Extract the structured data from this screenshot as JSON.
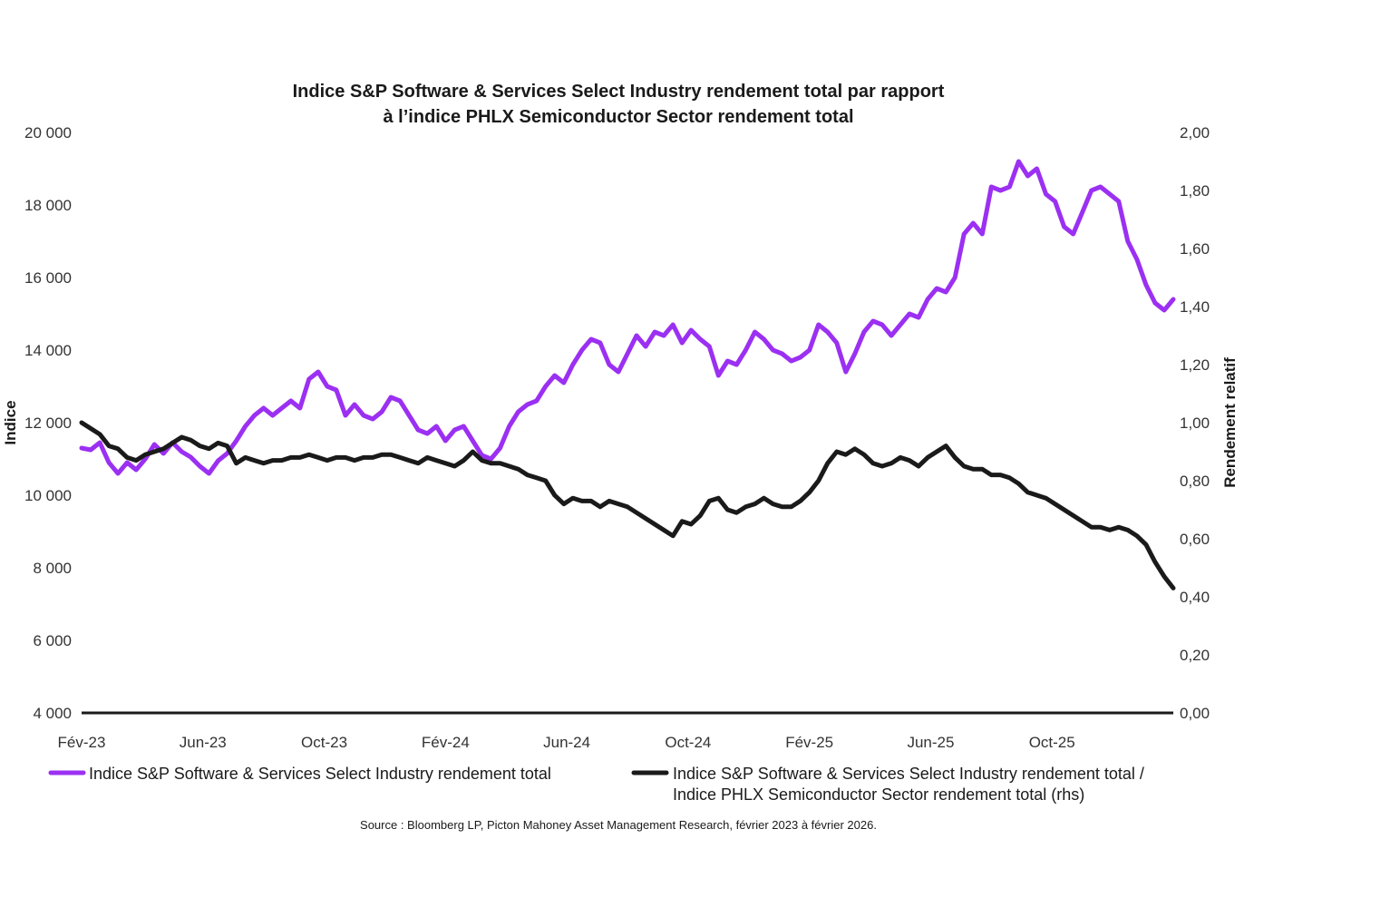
{
  "chart_data": {
    "type": "line",
    "title": [
      "Indice S&P Software & Services Select Industry rendement total par rapport",
      "à l’indice PHLX Semiconductor Sector rendement total"
    ],
    "ylabel_left": "Indice",
    "ylabel_right": "Rendement relatif",
    "ylim_left": [
      4000,
      20000
    ],
    "ylim_right": [
      0,
      2
    ],
    "yticks_left": [
      "4 000",
      "6 000",
      "8 000",
      "10 000",
      "12 000",
      "14 000",
      "16 000",
      "18 000",
      "20 000"
    ],
    "yticks_right": [
      "0,00",
      "0,20",
      "0,40",
      "0,60",
      "0,80",
      "1,00",
      "1,20",
      "1,40",
      "1,60",
      "1,80",
      "2,00"
    ],
    "x_categories": [
      "Fév-23",
      "Jun-23",
      "Oct-23",
      "Fév-24",
      "Jun-24",
      "Oct-24",
      "Fév-25",
      "Jun-25",
      "Oct-25"
    ],
    "x_range_months": [
      0,
      36
    ],
    "series": [
      {
        "name": "Indice S&P Software & Services Select Industry rendement total",
        "axis": "left",
        "color": "#9b30f2",
        "points": [
          [
            0,
            11300
          ],
          [
            0.3,
            11250
          ],
          [
            0.6,
            11450
          ],
          [
            0.9,
            10900
          ],
          [
            1.2,
            10600
          ],
          [
            1.5,
            10900
          ],
          [
            1.8,
            10700
          ],
          [
            2.1,
            11000
          ],
          [
            2.4,
            11400
          ],
          [
            2.7,
            11150
          ],
          [
            3.0,
            11450
          ],
          [
            3.3,
            11200
          ],
          [
            3.6,
            11050
          ],
          [
            3.9,
            10800
          ],
          [
            4.2,
            10600
          ],
          [
            4.5,
            10950
          ],
          [
            4.8,
            11150
          ],
          [
            5.1,
            11500
          ],
          [
            5.4,
            11900
          ],
          [
            5.7,
            12200
          ],
          [
            6.0,
            12400
          ],
          [
            6.3,
            12200
          ],
          [
            6.6,
            12400
          ],
          [
            6.9,
            12600
          ],
          [
            7.2,
            12400
          ],
          [
            7.5,
            13200
          ],
          [
            7.8,
            13400
          ],
          [
            8.1,
            13000
          ],
          [
            8.4,
            12900
          ],
          [
            8.7,
            12200
          ],
          [
            9.0,
            12500
          ],
          [
            9.3,
            12200
          ],
          [
            9.6,
            12100
          ],
          [
            9.9,
            12300
          ],
          [
            10.2,
            12700
          ],
          [
            10.5,
            12600
          ],
          [
            10.8,
            12200
          ],
          [
            11.1,
            11800
          ],
          [
            11.4,
            11700
          ],
          [
            11.7,
            11900
          ],
          [
            12.0,
            11500
          ],
          [
            12.3,
            11800
          ],
          [
            12.6,
            11900
          ],
          [
            12.9,
            11500
          ],
          [
            13.2,
            11100
          ],
          [
            13.5,
            11000
          ],
          [
            13.8,
            11300
          ],
          [
            14.1,
            11900
          ],
          [
            14.4,
            12300
          ],
          [
            14.7,
            12500
          ],
          [
            15.0,
            12600
          ],
          [
            15.3,
            13000
          ],
          [
            15.6,
            13300
          ],
          [
            15.9,
            13100
          ],
          [
            16.2,
            13600
          ],
          [
            16.5,
            14000
          ],
          [
            16.8,
            14300
          ],
          [
            17.1,
            14200
          ],
          [
            17.4,
            13600
          ],
          [
            17.7,
            13400
          ],
          [
            18.0,
            13900
          ],
          [
            18.3,
            14400
          ],
          [
            18.6,
            14100
          ],
          [
            18.9,
            14500
          ],
          [
            19.2,
            14400
          ],
          [
            19.5,
            14700
          ],
          [
            19.8,
            14200
          ],
          [
            20.1,
            14550
          ],
          [
            20.4,
            14300
          ],
          [
            20.7,
            14100
          ],
          [
            21.0,
            13300
          ],
          [
            21.3,
            13700
          ],
          [
            21.6,
            13600
          ],
          [
            21.9,
            14000
          ],
          [
            22.2,
            14500
          ],
          [
            22.5,
            14300
          ],
          [
            22.8,
            14000
          ],
          [
            23.1,
            13900
          ],
          [
            23.4,
            13700
          ],
          [
            23.7,
            13800
          ],
          [
            24.0,
            14000
          ],
          [
            24.3,
            14700
          ],
          [
            24.6,
            14500
          ],
          [
            24.9,
            14200
          ],
          [
            25.2,
            13400
          ],
          [
            25.5,
            13900
          ],
          [
            25.8,
            14500
          ],
          [
            26.1,
            14800
          ],
          [
            26.4,
            14700
          ],
          [
            26.7,
            14400
          ],
          [
            27.0,
            14700
          ],
          [
            27.3,
            15000
          ],
          [
            27.6,
            14900
          ],
          [
            27.9,
            15400
          ],
          [
            28.2,
            15700
          ],
          [
            28.5,
            15600
          ],
          [
            28.8,
            16000
          ],
          [
            29.1,
            17200
          ],
          [
            29.4,
            17500
          ],
          [
            29.7,
            17200
          ],
          [
            30.0,
            18500
          ],
          [
            30.3,
            18400
          ],
          [
            30.6,
            18500
          ],
          [
            30.9,
            19200
          ],
          [
            31.2,
            18800
          ],
          [
            31.5,
            19000
          ],
          [
            31.8,
            18300
          ],
          [
            32.1,
            18100
          ],
          [
            32.4,
            17400
          ],
          [
            32.7,
            17200
          ],
          [
            33.0,
            17800
          ],
          [
            33.3,
            18400
          ],
          [
            33.6,
            18500
          ],
          [
            33.9,
            18300
          ],
          [
            34.2,
            18100
          ],
          [
            34.5,
            17000
          ],
          [
            34.8,
            16500
          ],
          [
            35.1,
            15800
          ],
          [
            35.4,
            15300
          ],
          [
            35.7,
            15100
          ],
          [
            36.0,
            15400
          ]
        ]
      },
      {
        "name": "Indice S&P Software & Services Select Industry rendement total / Indice PHLX Semiconductor Sector rendement total (rhs)",
        "axis": "right",
        "color": "#1a1a1a",
        "points": [
          [
            0,
            1.0
          ],
          [
            0.3,
            0.98
          ],
          [
            0.6,
            0.96
          ],
          [
            0.9,
            0.92
          ],
          [
            1.2,
            0.91
          ],
          [
            1.5,
            0.88
          ],
          [
            1.8,
            0.87
          ],
          [
            2.1,
            0.89
          ],
          [
            2.4,
            0.9
          ],
          [
            2.7,
            0.91
          ],
          [
            3.0,
            0.93
          ],
          [
            3.3,
            0.95
          ],
          [
            3.6,
            0.94
          ],
          [
            3.9,
            0.92
          ],
          [
            4.2,
            0.91
          ],
          [
            4.5,
            0.93
          ],
          [
            4.8,
            0.92
          ],
          [
            5.1,
            0.86
          ],
          [
            5.4,
            0.88
          ],
          [
            5.7,
            0.87
          ],
          [
            6.0,
            0.86
          ],
          [
            6.3,
            0.87
          ],
          [
            6.6,
            0.87
          ],
          [
            6.9,
            0.88
          ],
          [
            7.2,
            0.88
          ],
          [
            7.5,
            0.89
          ],
          [
            7.8,
            0.88
          ],
          [
            8.1,
            0.87
          ],
          [
            8.4,
            0.88
          ],
          [
            8.7,
            0.88
          ],
          [
            9.0,
            0.87
          ],
          [
            9.3,
            0.88
          ],
          [
            9.6,
            0.88
          ],
          [
            9.9,
            0.89
          ],
          [
            10.2,
            0.89
          ],
          [
            10.5,
            0.88
          ],
          [
            10.8,
            0.87
          ],
          [
            11.1,
            0.86
          ],
          [
            11.4,
            0.88
          ],
          [
            11.7,
            0.87
          ],
          [
            12.0,
            0.86
          ],
          [
            12.3,
            0.85
          ],
          [
            12.6,
            0.87
          ],
          [
            12.9,
            0.9
          ],
          [
            13.2,
            0.87
          ],
          [
            13.5,
            0.86
          ],
          [
            13.8,
            0.86
          ],
          [
            14.1,
            0.85
          ],
          [
            14.4,
            0.84
          ],
          [
            14.7,
            0.82
          ],
          [
            15.0,
            0.81
          ],
          [
            15.3,
            0.8
          ],
          [
            15.6,
            0.75
          ],
          [
            15.9,
            0.72
          ],
          [
            16.2,
            0.74
          ],
          [
            16.5,
            0.73
          ],
          [
            16.8,
            0.73
          ],
          [
            17.1,
            0.71
          ],
          [
            17.4,
            0.73
          ],
          [
            17.7,
            0.72
          ],
          [
            18.0,
            0.71
          ],
          [
            18.3,
            0.69
          ],
          [
            18.6,
            0.67
          ],
          [
            18.9,
            0.65
          ],
          [
            19.2,
            0.63
          ],
          [
            19.5,
            0.61
          ],
          [
            19.8,
            0.66
          ],
          [
            20.1,
            0.65
          ],
          [
            20.4,
            0.68
          ],
          [
            20.7,
            0.73
          ],
          [
            21.0,
            0.74
          ],
          [
            21.3,
            0.7
          ],
          [
            21.6,
            0.69
          ],
          [
            21.9,
            0.71
          ],
          [
            22.2,
            0.72
          ],
          [
            22.5,
            0.74
          ],
          [
            22.8,
            0.72
          ],
          [
            23.1,
            0.71
          ],
          [
            23.4,
            0.71
          ],
          [
            23.7,
            0.73
          ],
          [
            24.0,
            0.76
          ],
          [
            24.3,
            0.8
          ],
          [
            24.6,
            0.86
          ],
          [
            24.9,
            0.9
          ],
          [
            25.2,
            0.89
          ],
          [
            25.5,
            0.91
          ],
          [
            25.8,
            0.89
          ],
          [
            26.1,
            0.86
          ],
          [
            26.4,
            0.85
          ],
          [
            26.7,
            0.86
          ],
          [
            27.0,
            0.88
          ],
          [
            27.3,
            0.87
          ],
          [
            27.6,
            0.85
          ],
          [
            27.9,
            0.88
          ],
          [
            28.2,
            0.9
          ],
          [
            28.5,
            0.92
          ],
          [
            28.8,
            0.88
          ],
          [
            29.1,
            0.85
          ],
          [
            29.4,
            0.84
          ],
          [
            29.7,
            0.84
          ],
          [
            30.0,
            0.82
          ],
          [
            30.3,
            0.82
          ],
          [
            30.6,
            0.81
          ],
          [
            30.9,
            0.79
          ],
          [
            31.2,
            0.76
          ],
          [
            31.5,
            0.75
          ],
          [
            31.8,
            0.74
          ],
          [
            32.1,
            0.72
          ],
          [
            32.4,
            0.7
          ],
          [
            32.7,
            0.68
          ],
          [
            33.0,
            0.66
          ],
          [
            33.3,
            0.64
          ],
          [
            33.6,
            0.64
          ],
          [
            33.9,
            0.63
          ],
          [
            34.2,
            0.64
          ],
          [
            34.5,
            0.63
          ],
          [
            34.8,
            0.61
          ],
          [
            35.1,
            0.58
          ],
          [
            35.4,
            0.52
          ],
          [
            35.7,
            0.47
          ],
          [
            36.0,
            0.43
          ]
        ]
      }
    ],
    "legend": [
      {
        "lines": [
          "Indice S&P Software & Services Select Industry rendement total"
        ],
        "color": "#9b30f2"
      },
      {
        "lines": [
          "Indice S&P Software & Services Select Industry rendement total /",
          "Indice PHLX Semiconductor Sector rendement total (rhs)"
        ],
        "color": "#1a1a1a"
      }
    ],
    "source": "Source : Bloomberg LP, Picton Mahoney Asset Management Research, février 2023 à février 2026."
  }
}
